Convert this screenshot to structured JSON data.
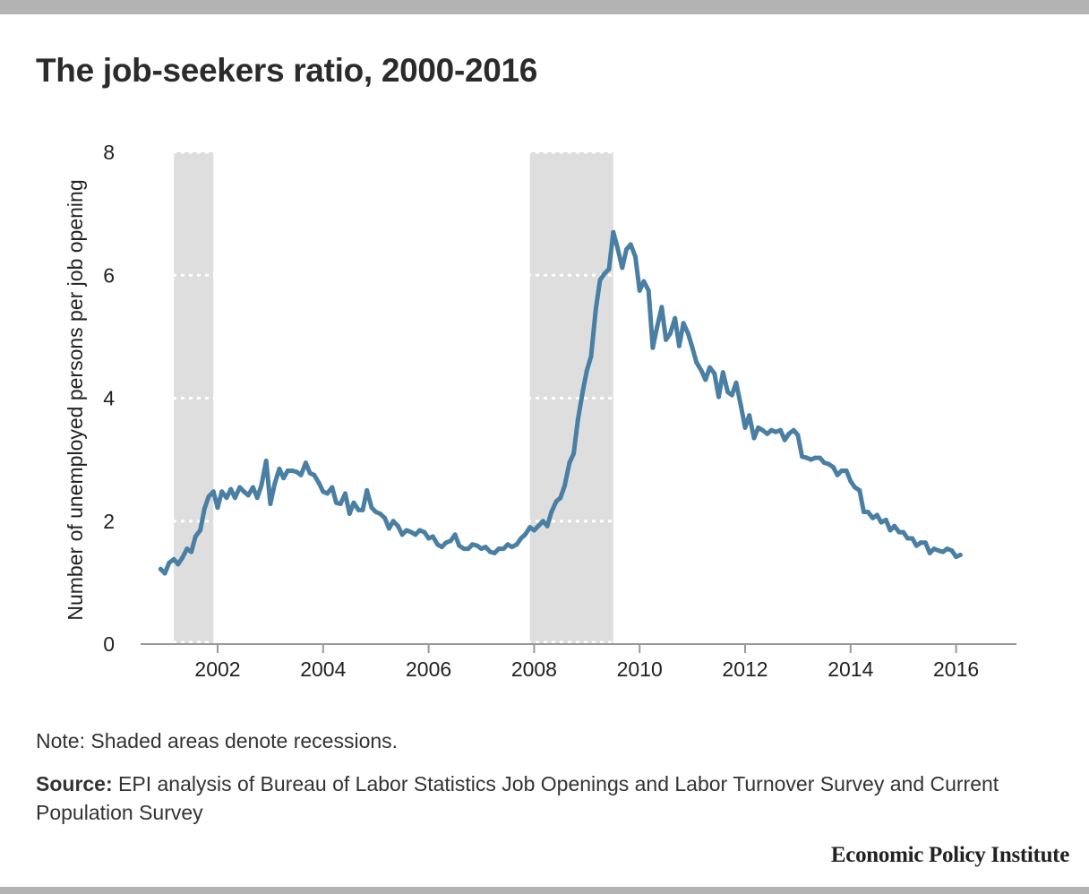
{
  "colors": {
    "frame_bar": "#b3b3b3",
    "series_line": "#4a7fa4",
    "recession_shade": "#dedede",
    "gridline": "#ffffff",
    "axis_line": "#999999"
  },
  "title": "The job-seekers ratio, 2000-2016",
  "note": "Note: Shaded areas denote recessions.",
  "source": {
    "label": "Source:",
    "text": " EPI analysis of Bureau of Labor Statistics Job Openings and Labor Turnover Survey and Current Population Survey"
  },
  "publisher": "Economic Policy Institute",
  "chart_data": {
    "type": "line",
    "ylabel": "Number of unemployed persons per job opening",
    "xlabel": "",
    "xlim": [
      2000.5,
      2017.0
    ],
    "ylim": [
      0,
      8
    ],
    "yticks": [
      0,
      2,
      4,
      6,
      8
    ],
    "xticks": [
      2002,
      2004,
      2006,
      2008,
      2010,
      2012,
      2014,
      2016
    ],
    "grid": "horizontal dotted",
    "recessions": [
      {
        "start": 2001.17,
        "end": 2001.92
      },
      {
        "start": 2007.92,
        "end": 2009.5
      }
    ],
    "series": [
      {
        "x": [
          2000.92,
          2001.0,
          2001.08,
          2001.17,
          2001.25,
          2001.33,
          2001.42,
          2001.5,
          2001.58,
          2001.67,
          2001.75,
          2001.83,
          2001.92,
          2002.0,
          2002.08,
          2002.17,
          2002.25,
          2002.33,
          2002.42,
          2002.5,
          2002.58,
          2002.67,
          2002.75,
          2002.83,
          2002.92,
          2003.0,
          2003.08,
          2003.17,
          2003.25,
          2003.33,
          2003.42,
          2003.5,
          2003.58,
          2003.67,
          2003.75,
          2003.83,
          2003.92,
          2004.0,
          2004.08,
          2004.17,
          2004.25,
          2004.33,
          2004.42,
          2004.5,
          2004.58,
          2004.67,
          2004.75,
          2004.83,
          2004.92,
          2005.0,
          2005.08,
          2005.17,
          2005.25,
          2005.33,
          2005.42,
          2005.5,
          2005.58,
          2005.67,
          2005.75,
          2005.83,
          2005.92,
          2006.0,
          2006.08,
          2006.17,
          2006.25,
          2006.33,
          2006.42,
          2006.5,
          2006.58,
          2006.67,
          2006.75,
          2006.83,
          2006.92,
          2007.0,
          2007.08,
          2007.17,
          2007.25,
          2007.33,
          2007.42,
          2007.5,
          2007.58,
          2007.67,
          2007.75,
          2007.83,
          2007.92,
          2008.0,
          2008.08,
          2008.17,
          2008.25,
          2008.33,
          2008.42,
          2008.5,
          2008.58,
          2008.67,
          2008.75,
          2008.83,
          2008.92,
          2009.0,
          2009.08,
          2009.17,
          2009.25,
          2009.33,
          2009.42,
          2009.5,
          2009.58,
          2009.67,
          2009.75,
          2009.83,
          2009.92,
          2010.0,
          2010.08,
          2010.17,
          2010.25,
          2010.33,
          2010.42,
          2010.5,
          2010.58,
          2010.67,
          2010.75,
          2010.83,
          2010.92,
          2011.0,
          2011.08,
          2011.17,
          2011.25,
          2011.33,
          2011.42,
          2011.5,
          2011.58,
          2011.67,
          2011.75,
          2011.83,
          2011.92,
          2012.0,
          2012.08,
          2012.17,
          2012.25,
          2012.33,
          2012.42,
          2012.5,
          2012.58,
          2012.67,
          2012.75,
          2012.83,
          2012.92,
          2013.0,
          2013.08,
          2013.17,
          2013.25,
          2013.33,
          2013.42,
          2013.5,
          2013.58,
          2013.67,
          2013.75,
          2013.83,
          2013.92,
          2014.0,
          2014.08,
          2014.17,
          2014.25,
          2014.33,
          2014.42,
          2014.5,
          2014.58,
          2014.67,
          2014.75,
          2014.83,
          2014.92,
          2015.0,
          2015.08,
          2015.17,
          2015.25,
          2015.33,
          2015.42,
          2015.5,
          2015.58,
          2015.67,
          2015.75,
          2015.83,
          2015.92,
          2016.0,
          2016.08
        ],
        "values": [
          1.22,
          1.15,
          1.32,
          1.38,
          1.3,
          1.4,
          1.55,
          1.5,
          1.75,
          1.85,
          2.2,
          2.4,
          2.48,
          2.22,
          2.48,
          2.38,
          2.52,
          2.38,
          2.55,
          2.48,
          2.42,
          2.55,
          2.38,
          2.58,
          2.98,
          2.28,
          2.6,
          2.85,
          2.7,
          2.82,
          2.82,
          2.8,
          2.75,
          2.95,
          2.78,
          2.75,
          2.62,
          2.48,
          2.45,
          2.55,
          2.3,
          2.28,
          2.45,
          2.12,
          2.3,
          2.18,
          2.18,
          2.5,
          2.22,
          2.15,
          2.12,
          2.05,
          1.88,
          2.0,
          1.92,
          1.78,
          1.85,
          1.82,
          1.78,
          1.85,
          1.82,
          1.72,
          1.75,
          1.62,
          1.58,
          1.65,
          1.68,
          1.78,
          1.6,
          1.55,
          1.55,
          1.62,
          1.6,
          1.55,
          1.58,
          1.5,
          1.48,
          1.55,
          1.55,
          1.62,
          1.58,
          1.62,
          1.72,
          1.78,
          1.9,
          1.85,
          1.92,
          2.0,
          1.92,
          2.15,
          2.32,
          2.38,
          2.58,
          2.95,
          3.1,
          3.65,
          4.1,
          4.45,
          4.68,
          5.45,
          5.92,
          6.02,
          6.1,
          6.7,
          6.45,
          6.12,
          6.42,
          6.5,
          6.3,
          5.75,
          5.9,
          5.75,
          4.82,
          5.15,
          5.48,
          4.95,
          5.05,
          5.3,
          4.85,
          5.22,
          5.05,
          4.82,
          4.58,
          4.45,
          4.3,
          4.5,
          4.4,
          4.02,
          4.42,
          4.1,
          4.05,
          4.25,
          3.88,
          3.52,
          3.72,
          3.35,
          3.52,
          3.48,
          3.42,
          3.48,
          3.45,
          3.48,
          3.32,
          3.42,
          3.48,
          3.4,
          3.05,
          3.03,
          3.0,
          3.03,
          3.03,
          2.95,
          2.93,
          2.88,
          2.75,
          2.82,
          2.82,
          2.65,
          2.55,
          2.5,
          2.15,
          2.15,
          2.05,
          2.1,
          1.98,
          2.02,
          1.85,
          1.92,
          1.82,
          1.82,
          1.72,
          1.72,
          1.6,
          1.65,
          1.65,
          1.48,
          1.55,
          1.52,
          1.5,
          1.55,
          1.52,
          1.42,
          1.45
        ]
      }
    ]
  }
}
